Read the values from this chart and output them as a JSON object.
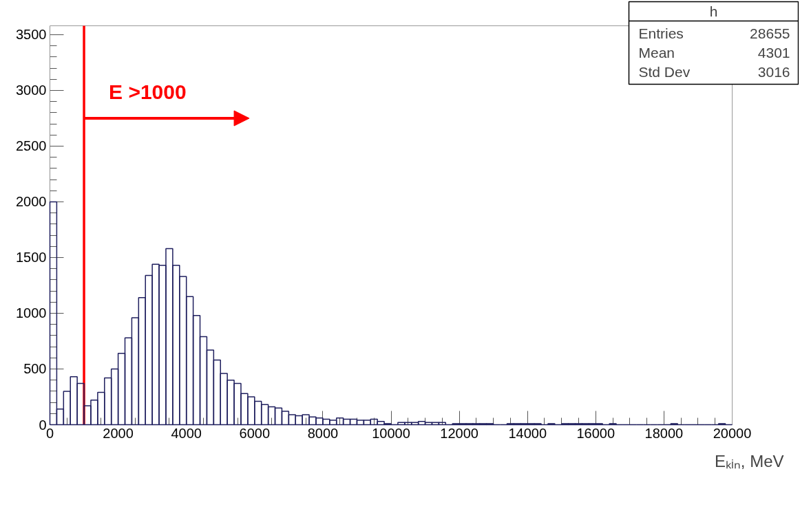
{
  "chart_data": {
    "type": "histogram",
    "xlabel": "Eₖᵢₙ, MeV",
    "bins": [
      0,
      200,
      400,
      600,
      800,
      1000,
      1200,
      1400,
      1600,
      1800,
      2000,
      2200,
      2400,
      2600,
      2800,
      3000,
      3200,
      3400,
      3600,
      3800,
      4000,
      4200,
      4400,
      4600,
      4800,
      5000,
      5200,
      5400,
      5600,
      5800,
      6000,
      6200,
      6400,
      6600,
      6800,
      7000,
      7200,
      7400,
      7600,
      7800,
      8000,
      8200,
      8400,
      8600,
      8800,
      9000,
      9200,
      9400,
      9600,
      9800,
      10000,
      10200,
      10400,
      10600,
      10800,
      11000,
      11200,
      11400,
      11600,
      11800,
      12000,
      12200,
      12400,
      12600,
      12800,
      13000,
      13200,
      13400,
      13600,
      13800,
      14000,
      14200,
      14400,
      14600,
      14800,
      15000,
      15200,
      15400,
      15600,
      15800,
      16000,
      16200,
      16400,
      16600,
      16800,
      17000,
      17200,
      17400,
      17600,
      17800,
      18000,
      18200,
      18400,
      18600,
      18800,
      19000,
      19200,
      19400,
      19600,
      19800,
      20000
    ],
    "values": [
      2000,
      140,
      300,
      430,
      370,
      170,
      220,
      290,
      420,
      500,
      640,
      780,
      960,
      1140,
      1340,
      1440,
      1430,
      1580,
      1430,
      1330,
      1150,
      980,
      790,
      670,
      580,
      460,
      400,
      370,
      280,
      250,
      210,
      180,
      160,
      150,
      120,
      90,
      80,
      90,
      70,
      60,
      50,
      40,
      60,
      50,
      50,
      40,
      40,
      50,
      30,
      10,
      0,
      20,
      20,
      20,
      30,
      20,
      20,
      20,
      0,
      10,
      10,
      10,
      10,
      10,
      10,
      0,
      0,
      10,
      10,
      10,
      10,
      10,
      0,
      10,
      0,
      10,
      10,
      10,
      10,
      10,
      10,
      0,
      10,
      0,
      0,
      0,
      0,
      0,
      0,
      0,
      0,
      10,
      0,
      0,
      0,
      0,
      0,
      0,
      10,
      0
    ],
    "color": "#1f1f5e",
    "xlim": [
      0,
      20000
    ],
    "ylim": [
      0,
      3580
    ],
    "xticks": [
      0,
      2000,
      4000,
      6000,
      8000,
      10000,
      12000,
      14000,
      16000,
      18000,
      20000
    ],
    "yticks": [
      0,
      500,
      1000,
      1500,
      2000,
      2500,
      3000,
      3500
    ],
    "grid": false,
    "ref_lines": [
      {
        "axis": "x",
        "value": 1000,
        "color": "#ff0000"
      }
    ],
    "annotations": [
      {
        "text": "E >1000",
        "x": 1000,
        "y": 2750
      },
      "h",
      "Entries 28655",
      "Mean 4301",
      "Std Dev 3016"
    ]
  }
}
